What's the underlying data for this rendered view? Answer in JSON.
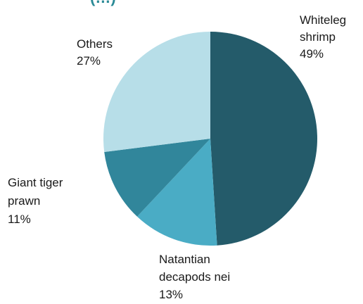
{
  "title_fragment": "(…)",
  "chart_data": {
    "type": "pie",
    "start_angle_deg": 0,
    "direction": "clockwise",
    "slices": [
      {
        "label_lines": [
          "Whiteleg",
          "shrimp"
        ],
        "pct_text": "49%",
        "value": 49,
        "color": "#245b6a"
      },
      {
        "label_lines": [
          "Natantian",
          "decapods nei"
        ],
        "pct_text": "13%",
        "value": 13,
        "color": "#4aacc5"
      },
      {
        "label_lines": [
          "Giant tiger",
          "prawn"
        ],
        "pct_text": "11%",
        "value": 11,
        "color": "#31869b"
      },
      {
        "label_lines": [
          "Others"
        ],
        "pct_text": "27%",
        "value": 27,
        "color": "#b7dee8"
      }
    ]
  }
}
